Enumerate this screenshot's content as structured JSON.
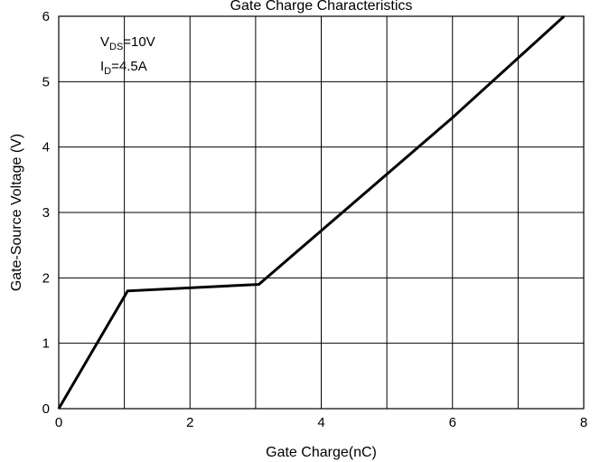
{
  "chart_data": {
    "type": "line",
    "title": "Gate Charge Characteristics",
    "xlabel": "Gate Charge(nC)",
    "ylabel": "Gate-Source Voltage (V)",
    "xlim": [
      0,
      8
    ],
    "ylim": [
      0,
      6
    ],
    "xticks": [
      0,
      2,
      4,
      6,
      8
    ],
    "yticks": [
      0,
      1,
      2,
      3,
      4,
      5,
      6
    ],
    "x_gridlines": [
      0,
      1,
      2,
      3,
      4,
      5,
      6,
      7,
      8
    ],
    "grid": true,
    "annotations": [
      {
        "main": "V",
        "sub": "DS",
        "rest": "=10V"
      },
      {
        "main": "I",
        "sub": "D",
        "rest": "=4.5A"
      }
    ],
    "series": [
      {
        "color": "#000000",
        "x": [
          0,
          1.05,
          3.05,
          6.0,
          7.7
        ],
        "y": [
          0,
          1.8,
          1.9,
          4.45,
          6.0
        ]
      }
    ]
  }
}
